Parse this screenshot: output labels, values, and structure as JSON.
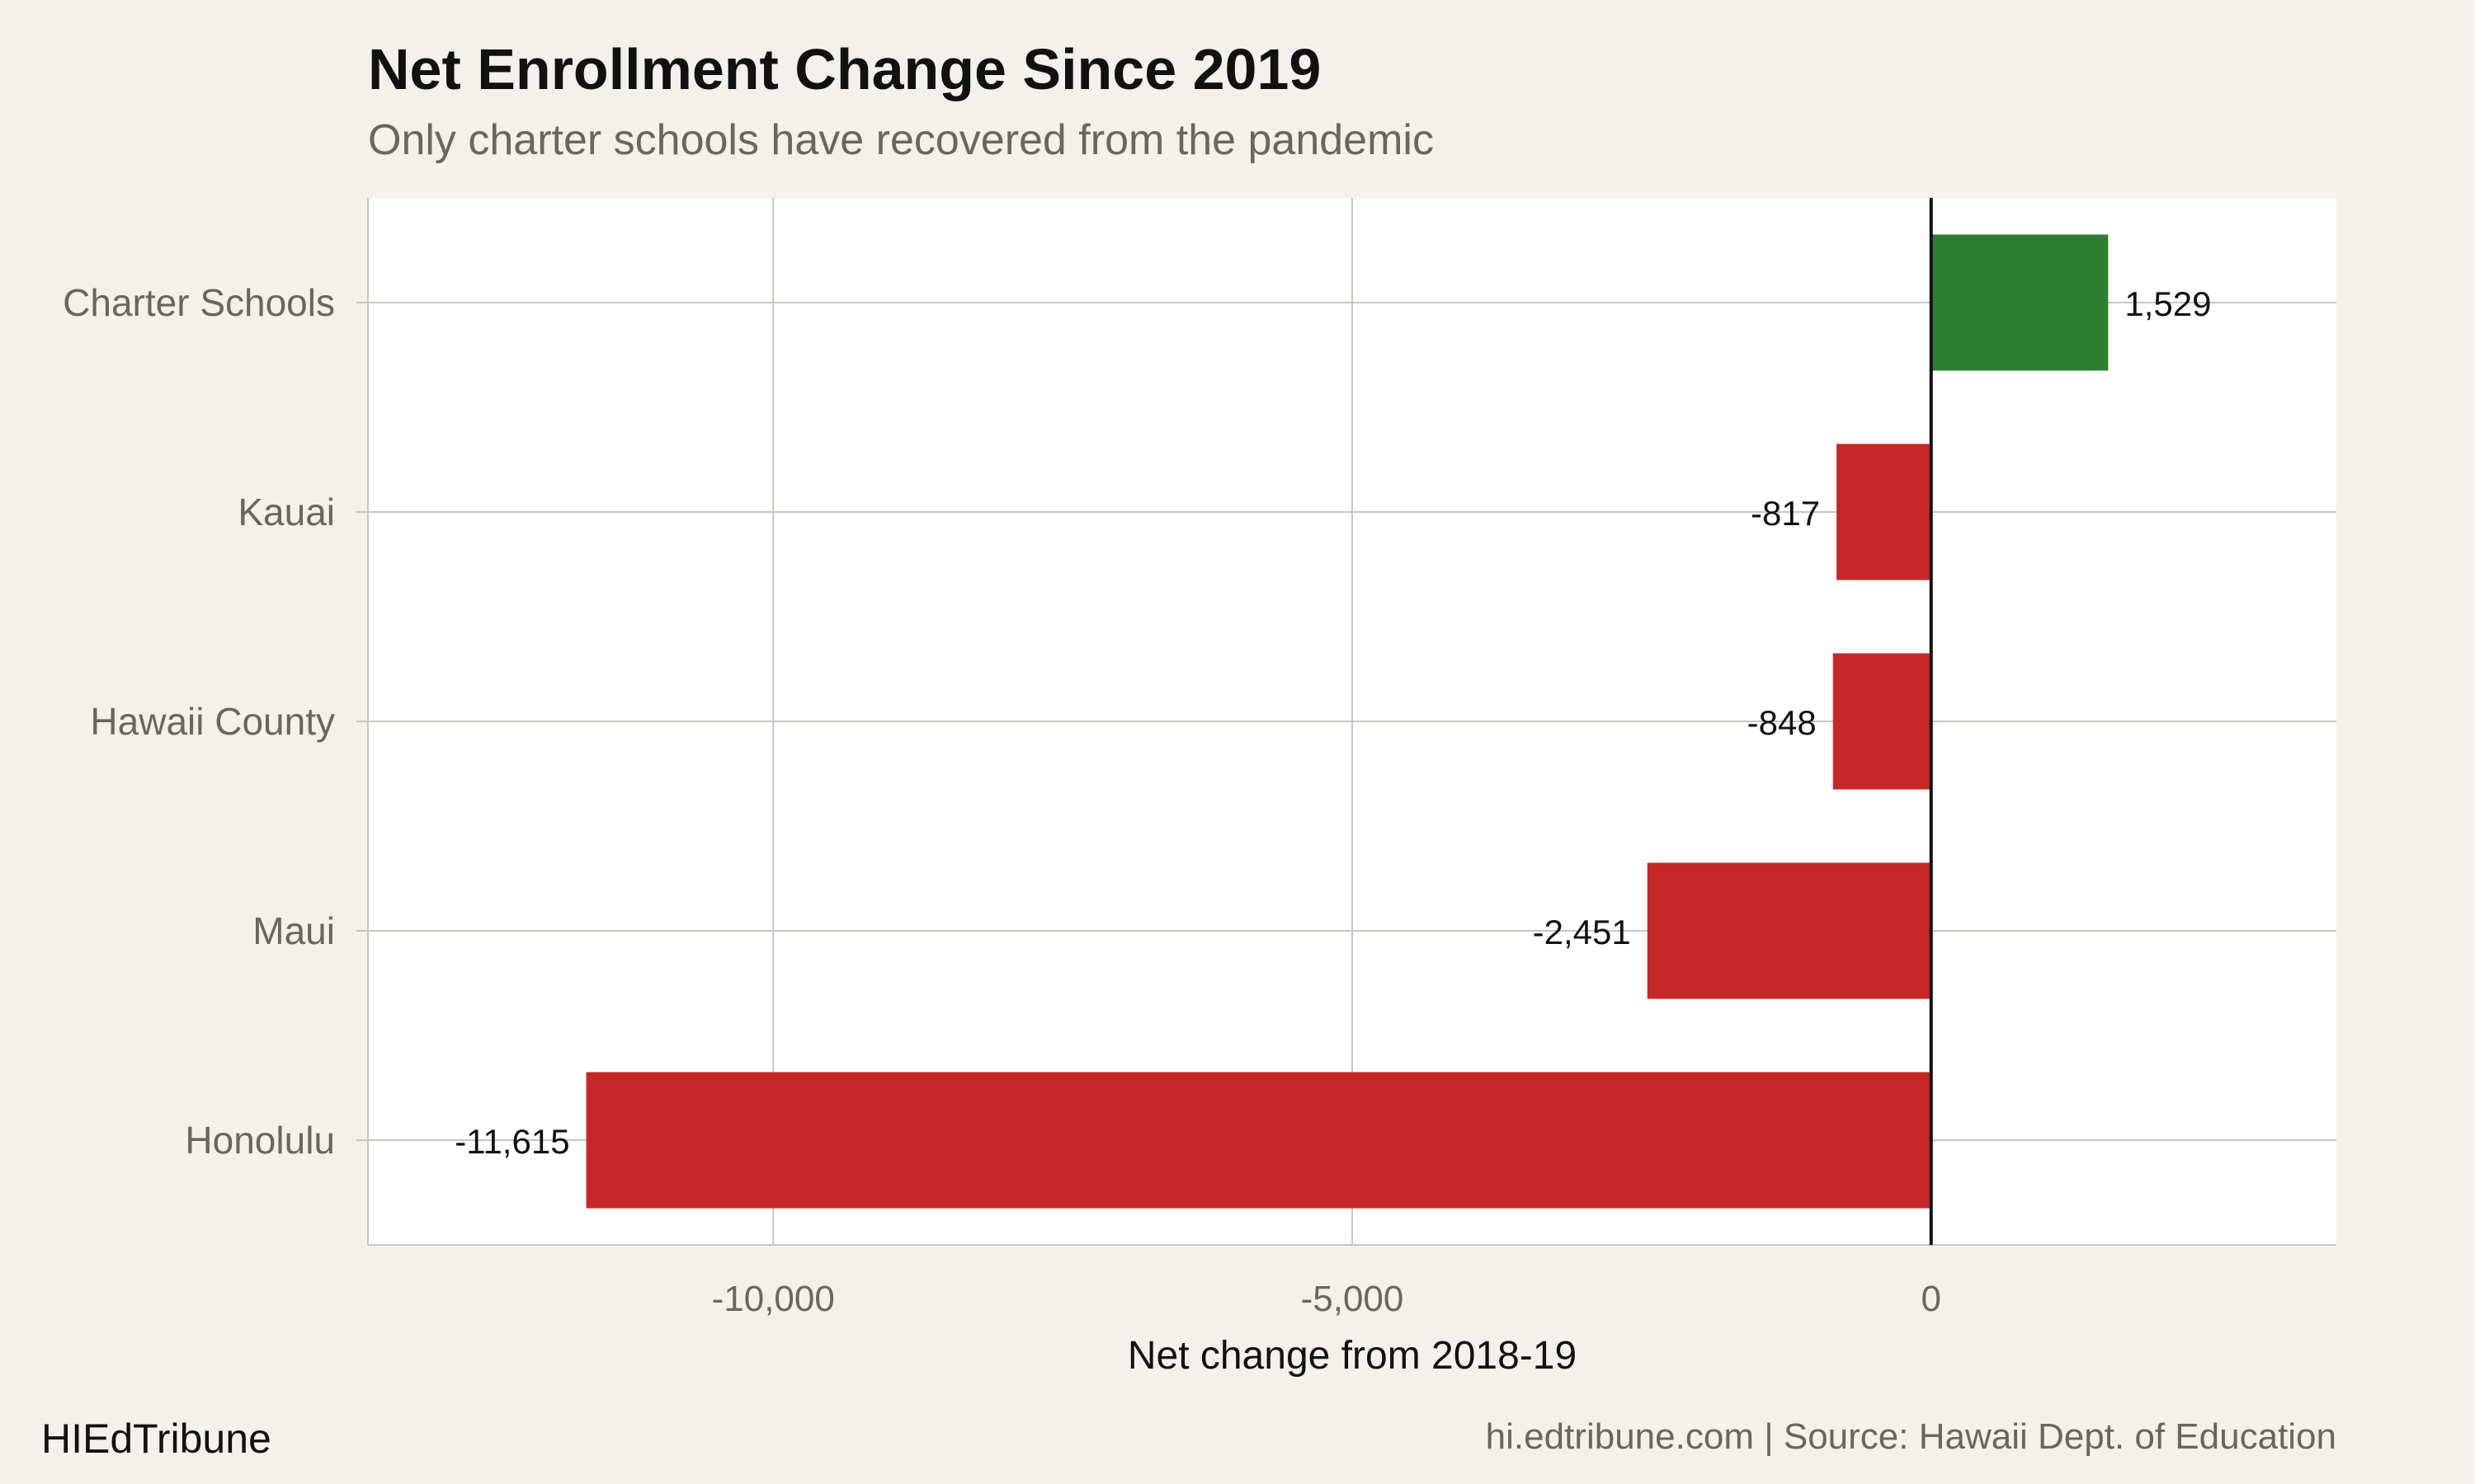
{
  "chart_data": {
    "type": "bar",
    "orientation": "horizontal",
    "title": "Net Enrollment Change Since 2019",
    "subtitle": "Only charter schools have recovered from the pandemic",
    "categories": [
      "Charter Schools",
      "Kauai",
      "Hawaii County",
      "Maui",
      "Honolulu"
    ],
    "values": [
      1529,
      -817,
      -848,
      -2451,
      -11615
    ],
    "value_labels": [
      "1,529",
      "-817",
      "-848",
      "-2,451",
      "-11,615"
    ],
    "xlabel": "Net change from 2018-19",
    "ylabel": "",
    "xlim": [
      -13500,
      3500
    ],
    "x_ticks": [
      -10000,
      -5000,
      0
    ],
    "x_tick_labels": [
      "-10,000",
      "-5,000",
      "0"
    ],
    "grid": true,
    "colors": {
      "positive": "#2e7d32",
      "negative": "#c62828",
      "grid": "#c9c6bf",
      "panel": "#ffffff",
      "background": "#f4f1ec"
    }
  },
  "footer": {
    "brand": "HIEdTribune",
    "source": "hi.edtribune.com | Source: Hawaii Dept. of Education"
  }
}
